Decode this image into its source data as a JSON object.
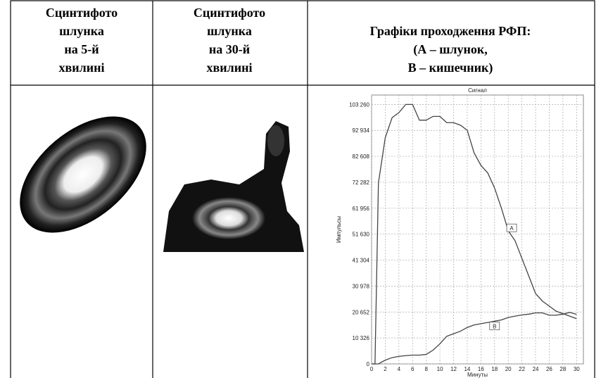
{
  "table": {
    "headers": [
      [
        "Сцинтифото",
        "шлунка",
        "на 5-й",
        "хвилині"
      ],
      [
        "Сцинтифото",
        "шлунка",
        "на 30-й",
        "хвилині"
      ],
      [
        "Графіки проходження РФП:",
        "(А – шлунок,",
        "В – кишечник)"
      ]
    ]
  },
  "chart_data": {
    "type": "line",
    "title": "Сигнал",
    "x_label": "Минуты",
    "y_label": "Импульсы",
    "x": [
      0,
      0.5,
      1,
      2,
      3,
      4,
      5,
      6,
      7,
      8,
      9,
      10,
      11,
      12,
      13,
      14,
      15,
      16,
      17,
      18,
      19,
      20,
      21,
      22,
      23,
      24,
      25,
      26,
      27,
      28,
      29,
      30
    ],
    "series": [
      {
        "name": "A",
        "color": "#444444",
        "values": [
          0,
          0,
          72000,
          90000,
          98000,
          100000,
          103260,
          103260,
          97000,
          97000,
          98500,
          98500,
          96000,
          96000,
          95000,
          93000,
          84000,
          79000,
          76000,
          70000,
          62000,
          53000,
          49000,
          42000,
          35000,
          28000,
          25000,
          23000,
          21000,
          20000,
          19000,
          18000
        ]
      },
      {
        "name": "B",
        "color": "#444444",
        "values": [
          0,
          0,
          0,
          1500,
          2500,
          3000,
          3300,
          3500,
          3500,
          3800,
          5500,
          8000,
          11000,
          12000,
          13000,
          14500,
          15500,
          16000,
          16500,
          17000,
          17500,
          18500,
          19000,
          19500,
          19800,
          20300,
          20300,
          19400,
          19400,
          19800,
          20500,
          19700
        ]
      }
    ],
    "annotations": [
      {
        "text": "A",
        "x": 20.5,
        "y": 54000
      },
      {
        "text": "B",
        "x": 18,
        "y": 15000
      }
    ],
    "xlim": [
      0,
      31
    ],
    "ylim": [
      0,
      107000
    ],
    "xticks": [
      0,
      2,
      4,
      6,
      8,
      10,
      12,
      14,
      16,
      18,
      20,
      22,
      24,
      26,
      28,
      30
    ],
    "yticks": [
      0,
      {
        "value": 10326,
        "label": "10 326"
      },
      {
        "value": 20652,
        "label": "20 652"
      },
      {
        "value": 30978,
        "label": "30 978"
      },
      {
        "value": 41304,
        "label": "41 304"
      },
      {
        "value": 51630,
        "label": "51 630"
      },
      {
        "value": 61956,
        "label": "61 956"
      },
      {
        "value": 72282,
        "label": "72 282"
      },
      {
        "value": 82608,
        "label": "82 608"
      },
      {
        "value": 92934,
        "label": "92 934"
      },
      {
        "value": 103260,
        "label": "103 260"
      }
    ],
    "grid": true
  }
}
